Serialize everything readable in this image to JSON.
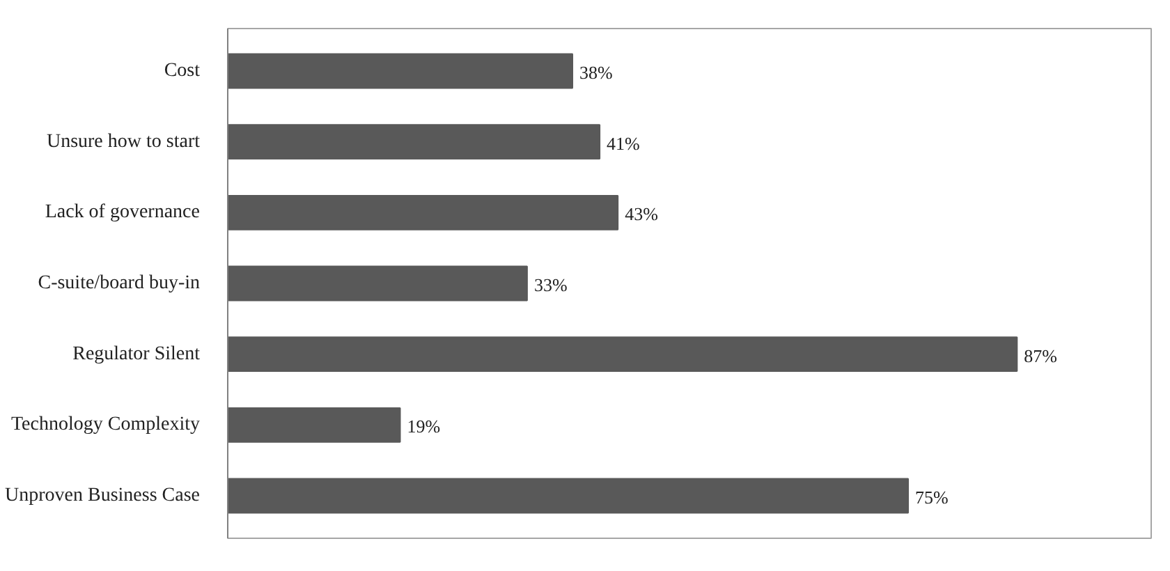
{
  "chart_data": {
    "type": "bar",
    "orientation": "horizontal",
    "data_labels": true,
    "grid": false,
    "tick_labels": "y",
    "categories": [
      "Cost",
      "Unsure how to start",
      "Lack of governance",
      "C-suite/board buy-in",
      "Regulator Silent",
      "Technology Complexity",
      "Unproven Business Case"
    ],
    "values": [
      38,
      41,
      43,
      33,
      87,
      19,
      75
    ],
    "value_labels": [
      "38%",
      "41%",
      "43%",
      "33%",
      "87%",
      "19%",
      "75%"
    ],
    "color": "#595959"
  }
}
